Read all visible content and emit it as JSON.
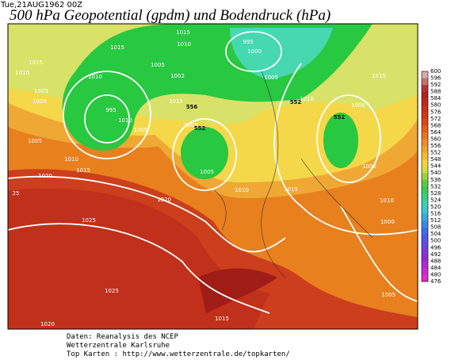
{
  "header": {
    "timestamp": "Tue,21AUG1962 00Z",
    "title": "500 hPa Geopotential (gpdm) und Bodendruck (hPa)"
  },
  "isobar_labels": [
    "1015",
    "1015",
    "1010",
    "995",
    "1000",
    "1015",
    "1010",
    "1005",
    "1010",
    "1002",
    "1005",
    "1015",
    "1005",
    "1000",
    "995",
    "1015",
    "1010",
    "1000",
    "1010",
    "1005",
    "1005",
    "1005",
    "1010",
    "1005",
    "1015",
    "1005",
    "1020",
    "1010",
    "1015",
    "25",
    "1020",
    "1010",
    "1025",
    "1000",
    "1025",
    "1005",
    "1015",
    "1020"
  ],
  "height_labels": [
    "556",
    "552",
    "552",
    "552"
  ],
  "colorbar": {
    "labels": [
      "600",
      "596",
      "592",
      "588",
      "584",
      "580",
      "576",
      "572",
      "568",
      "564",
      "560",
      "556",
      "552",
      "548",
      "544",
      "540",
      "536",
      "532",
      "528",
      "524",
      "520",
      "516",
      "512",
      "508",
      "504",
      "500",
      "496",
      "492",
      "488",
      "484",
      "480",
      "476"
    ]
  },
  "footer": {
    "lines": [
      "Daten: Reanalysis des NCEP",
      "Wetterzentrale Karlsruhe",
      "Top Karten : http://www.wetterzentrale.de/topkarten/"
    ]
  }
}
